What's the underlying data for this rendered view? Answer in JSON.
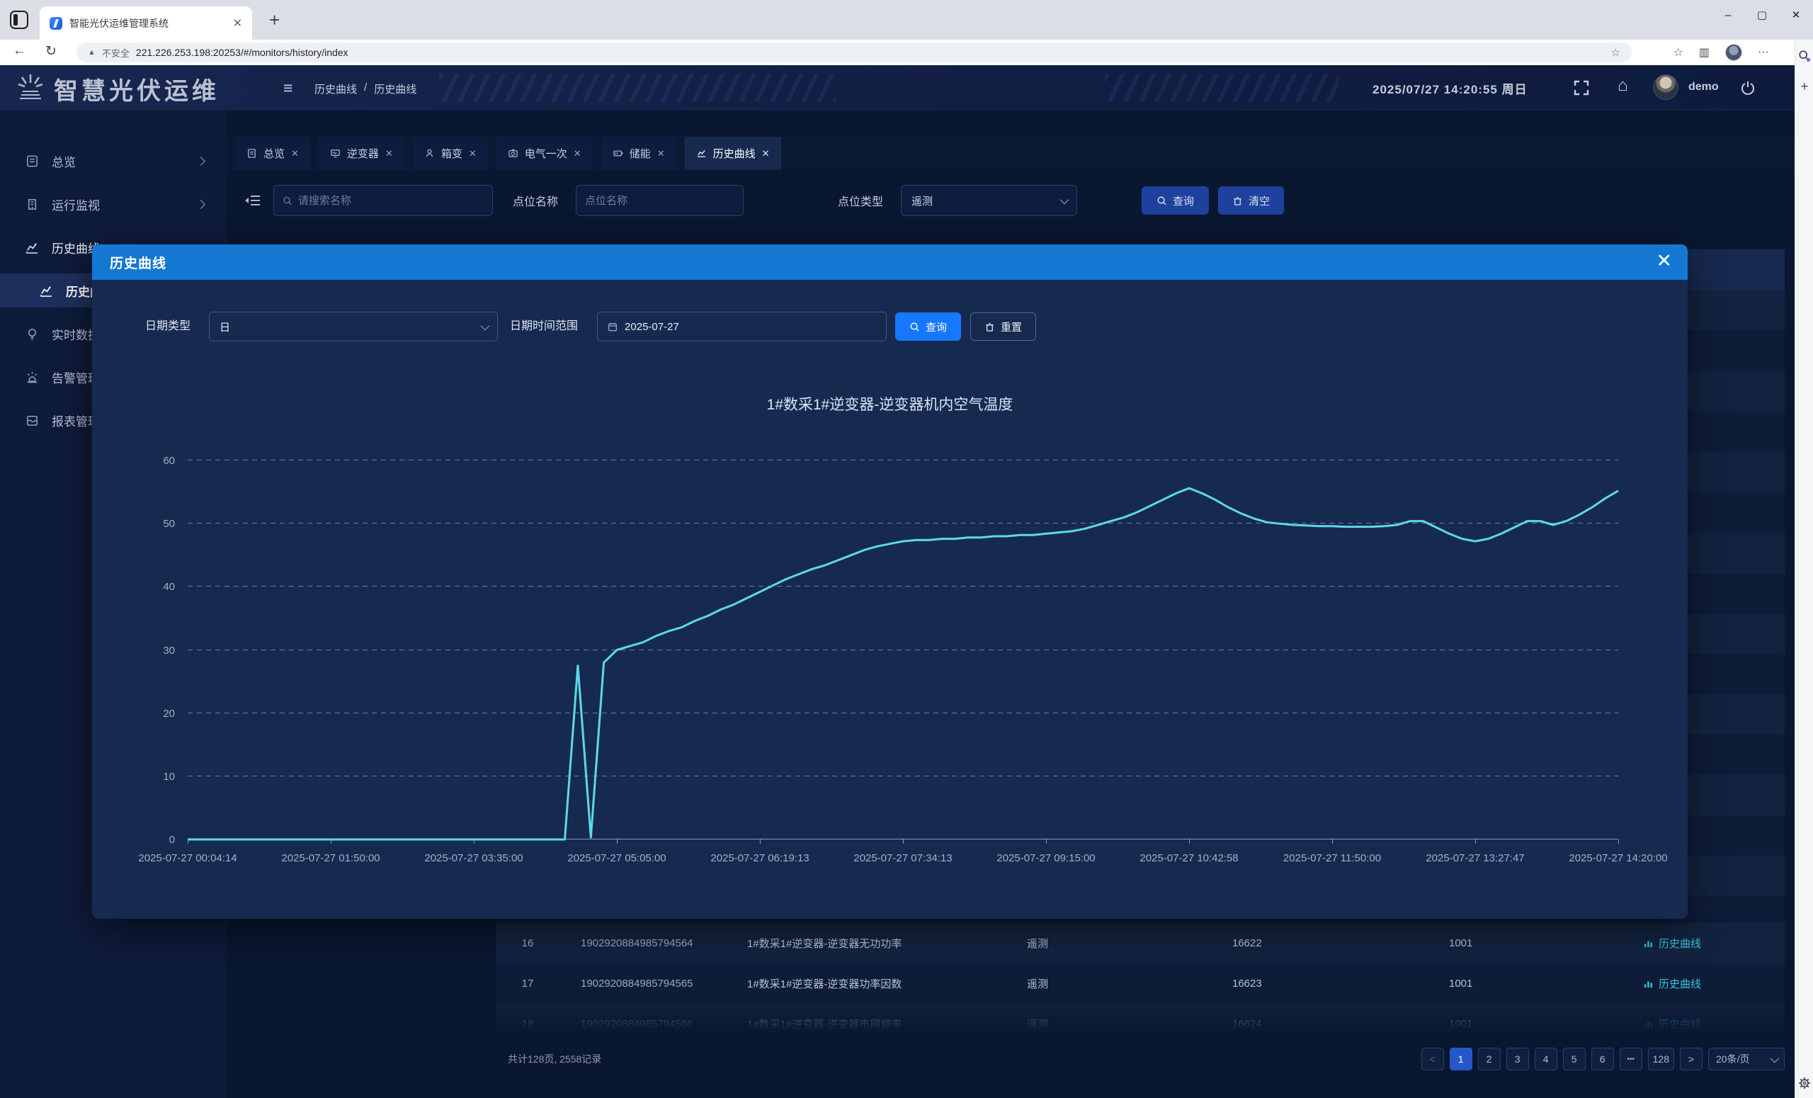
{
  "browser": {
    "tab_title": "智能光伏运维管理系统",
    "security": "不安全",
    "url": "221.226.253.198:20253/#/monitors/history/index"
  },
  "header": {
    "title": "智慧光伏运维",
    "breadcrumb_root": "历史曲线",
    "breadcrumb_sep": "/",
    "breadcrumb_current": "历史曲线",
    "datetime": "2025/07/27 14:20:55 周日",
    "user": "demo"
  },
  "sidebar": {
    "items": [
      {
        "label": "总览"
      },
      {
        "label": "运行监视"
      },
      {
        "label": "历史曲线"
      },
      {
        "label": "历史曲线"
      },
      {
        "label": "实时数据"
      },
      {
        "label": "告警管理"
      },
      {
        "label": "报表管理"
      }
    ]
  },
  "tabs": [
    {
      "label": "总览"
    },
    {
      "label": "逆变器"
    },
    {
      "label": "箱变"
    },
    {
      "label": "电气一次"
    },
    {
      "label": "储能"
    },
    {
      "label": "历史曲线"
    }
  ],
  "filter": {
    "search_placeholder": "请搜索名称",
    "point_name_label": "点位名称",
    "point_name_placeholder": "点位名称",
    "point_type_label": "点位类型",
    "point_type_value": "遥测",
    "query": "查询",
    "clear": "清空"
  },
  "modal": {
    "title": "历史曲线",
    "date_type_label": "日期类型",
    "date_type_value": "日",
    "date_range_label": "日期时间范围",
    "date_value": "2025-07-27",
    "query": "查询",
    "reset": "重置"
  },
  "chart_data": {
    "type": "line",
    "title": "1#数采1#逆变器-逆变器机内空气温度",
    "xlabel": "",
    "ylabel": "",
    "ylim": [
      0,
      60
    ],
    "y_ticks": [
      0,
      10,
      20,
      30,
      40,
      50,
      60
    ],
    "grid": "dashed-horizontal",
    "legend": "none",
    "line_color": "#5cd9e9",
    "x_labels": [
      "2025-07-27 00:04:14",
      "2025-07-27 01:50:00",
      "2025-07-27 03:35:00",
      "2025-07-27 05:05:00",
      "2025-07-27 06:19:13",
      "2025-07-27 07:34:13",
      "2025-07-27 09:15:00",
      "2025-07-27 10:42:58",
      "2025-07-27 11:50:00",
      "2025-07-27 13:27:47",
      "2025-07-27 14:20:00"
    ],
    "values": [
      0,
      0,
      0,
      0,
      0,
      0,
      0,
      0,
      0,
      0,
      0,
      0,
      0,
      0,
      0,
      0,
      0,
      0,
      0,
      0,
      0,
      0,
      0,
      0,
      0,
      0,
      0,
      0,
      0,
      0,
      27.5,
      0.3,
      28,
      30,
      30.6,
      31.2,
      32.2,
      33,
      33.6,
      34.6,
      35.4,
      36.4,
      37.2,
      38.2,
      39.2,
      40.2,
      41.2,
      42,
      42.8,
      43.4,
      44.2,
      45,
      45.8,
      46.4,
      46.8,
      47.2,
      47.4,
      47.4,
      47.6,
      47.6,
      47.8,
      47.8,
      48,
      48,
      48.2,
      48.2,
      48.4,
      48.6,
      48.8,
      49.2,
      49.8,
      50.4,
      51,
      51.8,
      52.8,
      53.8,
      54.8,
      55.6,
      54.8,
      53.8,
      52.6,
      51.6,
      50.8,
      50.2,
      50,
      49.8,
      49.7,
      49.6,
      49.6,
      49.5,
      49.5,
      49.5,
      49.6,
      49.8,
      50.4,
      50.4,
      49.4,
      48.4,
      47.6,
      47.2,
      47.6,
      48.4,
      49.4,
      50.4,
      50.4,
      49.8,
      50.4,
      51.4,
      52.6,
      54,
      55.2
    ]
  },
  "table": {
    "rows": [
      {
        "no": "16",
        "point_id": "1902920884985794564",
        "name": "1#数采1#逆变器-逆变器无功功率",
        "type": "遥测",
        "address": "16622",
        "group": "1001",
        "action": "历史曲线"
      },
      {
        "no": "17",
        "point_id": "1902920884985794565",
        "name": "1#数采1#逆变器-逆变器功率因数",
        "type": "遥测",
        "address": "16623",
        "group": "1001",
        "action": "历史曲线"
      },
      {
        "no": "18",
        "point_id": "1902920884985794566",
        "name": "1#数采1#逆变器-逆变器电网频率",
        "type": "遥测",
        "address": "16624",
        "group": "1001",
        "action": "历史曲线"
      }
    ]
  },
  "pagination": {
    "summary": "共计128页, 2558记录",
    "prev": "<",
    "next": ">",
    "pages": [
      "1",
      "2",
      "3",
      "4",
      "5",
      "6",
      "•••",
      "128"
    ],
    "page_size": "20条/页"
  }
}
